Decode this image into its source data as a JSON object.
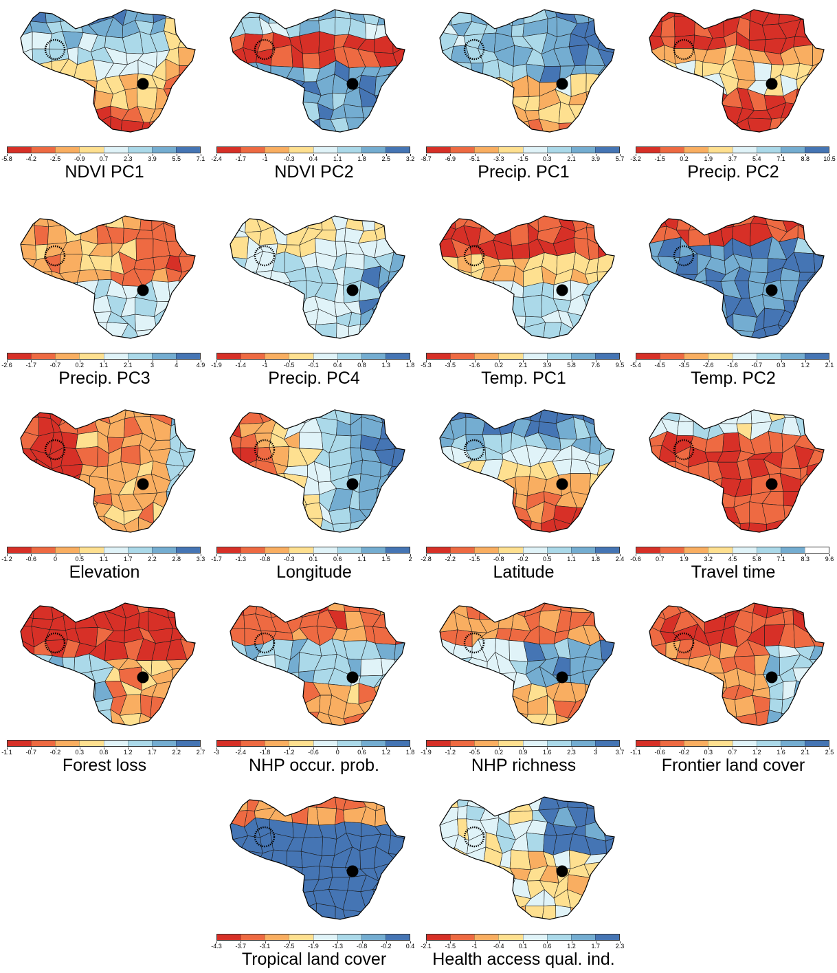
{
  "palette": [
    "#d73027",
    "#ee6a42",
    "#f9ae61",
    "#fee090",
    "#e0f3f8",
    "#abd9e9",
    "#74add1",
    "#4575b4"
  ],
  "travel_time_palette": [
    "#d73027",
    "#ee6a42",
    "#f9ae61",
    "#fee090",
    "#e0f3f8",
    "#abd9e9",
    "#74add1",
    "#ffffff"
  ],
  "panels": [
    {
      "title": "NDVI PC1",
      "ticks": [
        "-5.8",
        "-4.2",
        "-2.5",
        "-0.9",
        "0.7",
        "2.3",
        "3.9",
        "5.5",
        "7.1"
      ]
    },
    {
      "title": "NDVI PC2",
      "ticks": [
        "-2.4",
        "-1.7",
        "-1",
        "-0.3",
        "0.4",
        "1.1",
        "1.8",
        "2.5",
        "3.2"
      ]
    },
    {
      "title": "Precip. PC1",
      "ticks": [
        "-8.7",
        "-6.9",
        "-5.1",
        "-3.3",
        "-1.5",
        "0.3",
        "2.1",
        "3.9",
        "5.7"
      ]
    },
    {
      "title": "Precip. PC2",
      "ticks": [
        "-3.2",
        "-1.5",
        "0.2",
        "1.9",
        "3.7",
        "5.4",
        "7.1",
        "8.8",
        "10.5"
      ]
    },
    {
      "title": "Precip. PC3",
      "ticks": [
        "-2.6",
        "-1.7",
        "-0.7",
        "0.2",
        "1.1",
        "2.1",
        "3",
        "4",
        "4.9"
      ]
    },
    {
      "title": "Precip. PC4",
      "ticks": [
        "-1.9",
        "-1.4",
        "-1",
        "-0.5",
        "-0.1",
        "0.4",
        "0.8",
        "1.3",
        "1.8"
      ]
    },
    {
      "title": "Temp. PC1",
      "ticks": [
        "-5.3",
        "-3.5",
        "-1.6",
        "0.2",
        "2.1",
        "3.9",
        "5.8",
        "7.6",
        "9.5"
      ]
    },
    {
      "title": "Temp. PC2",
      "ticks": [
        "-5.4",
        "-4.5",
        "-3.5",
        "-2.6",
        "-1.6",
        "-0.7",
        "0.3",
        "1.2",
        "2.1"
      ]
    },
    {
      "title": "Elevation",
      "ticks": [
        "-1.2",
        "-0.6",
        "0",
        "0.5",
        "1.1",
        "1.7",
        "2.2",
        "2.8",
        "3.3"
      ]
    },
    {
      "title": "Longitude",
      "ticks": [
        "-1.7",
        "-1.3",
        "-0.8",
        "-0.3",
        "0.1",
        "0.6",
        "1.1",
        "1.5",
        "2"
      ]
    },
    {
      "title": "Latitude",
      "ticks": [
        "-2.8",
        "-2.2",
        "-1.5",
        "-0.8",
        "-0.2",
        "0.5",
        "1.1",
        "1.8",
        "2.4"
      ]
    },
    {
      "title": "Travel time",
      "ticks": [
        "-0.6",
        "0.7",
        "1.9",
        "3.2",
        "4.5",
        "5.8",
        "7.1",
        "8.3",
        "9.6"
      ]
    },
    {
      "title": "Forest loss",
      "ticks": [
        "-1.1",
        "-0.7",
        "-0.2",
        "0.3",
        "0.8",
        "1.2",
        "1.7",
        "2.2",
        "2.7"
      ]
    },
    {
      "title": "NHP occur. prob.",
      "ticks": [
        "-3",
        "-2.4",
        "-1.8",
        "-1.2",
        "-0.6",
        "0",
        "0.6",
        "1.2",
        "1.8"
      ]
    },
    {
      "title": "NHP richness",
      "ticks": [
        "-1.9",
        "-1.2",
        "-0.5",
        "0.2",
        "0.9",
        "1.6",
        "2.3",
        "3",
        "3.7"
      ]
    },
    {
      "title": "Frontier land cover",
      "ticks": [
        "-1.1",
        "-0.6",
        "-0.2",
        "0.3",
        "0.7",
        "1.2",
        "1.6",
        "2.1",
        "2.5"
      ]
    },
    {
      "title": "Tropical land cover",
      "ticks": [
        "-4.3",
        "-3.7",
        "-3.1",
        "-2.5",
        "-1.9",
        "-1.3",
        "-0.8",
        "-0.2",
        "0.4"
      ]
    },
    {
      "title": "Health access qual. ind.",
      "ticks": [
        "-2.1",
        "-1.5",
        "-1",
        "-0.4",
        "0.1",
        "0.6",
        "1.2",
        "1.7",
        "2.3"
      ]
    }
  ]
}
